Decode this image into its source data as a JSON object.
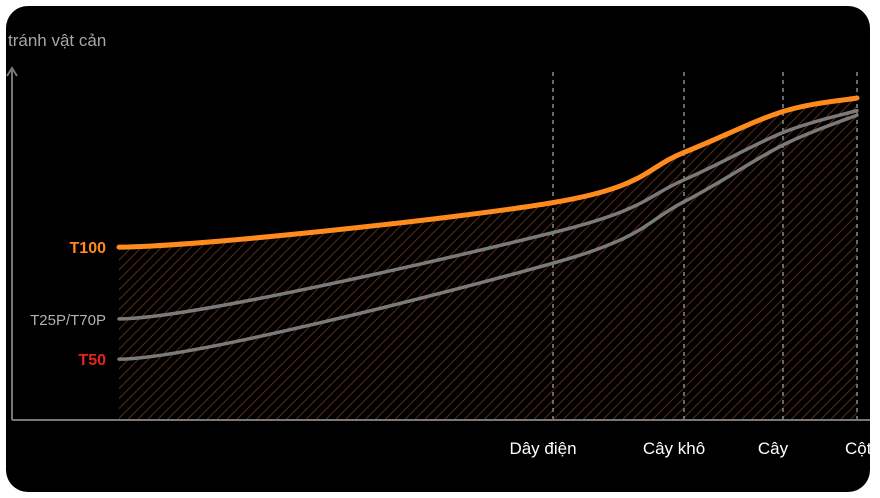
{
  "chart_data": {
    "type": "line",
    "ylabel": "tránh vật cản",
    "categories": [
      "Dây điện",
      "Cây khô",
      "Cây",
      "Cột"
    ],
    "series": [
      {
        "name": "T100",
        "color": "#ff8a1e",
        "start_y": 0.537,
        "curve": [
          0.675,
          0.831,
          0.958,
          1.0
        ]
      },
      {
        "name": "T25P/T70P",
        "color": "#7a7a7a",
        "start_y": 0.314,
        "curve": [
          0.582,
          0.746,
          0.893,
          0.961
        ]
      },
      {
        "name": "T50",
        "color": "#e8231c",
        "start_y": 0.189,
        "curve": [
          0.487,
          0.678,
          0.854,
          0.947
        ]
      }
    ],
    "grid": "dashed vertical at categories",
    "legend": "left of lines"
  }
}
